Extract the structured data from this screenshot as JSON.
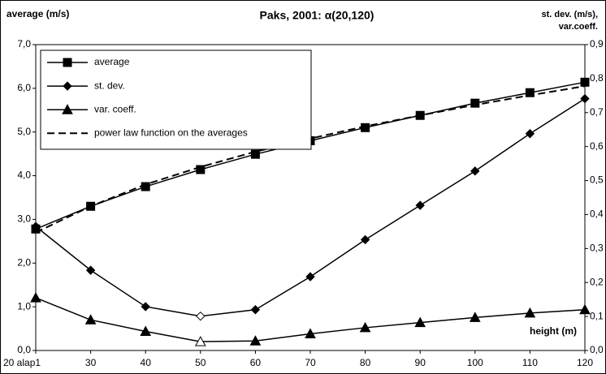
{
  "chart_data": {
    "type": "line",
    "title": "Paks, 2001: α(20,120)",
    "ylabel": "average (m/s)",
    "y2label": [
      "st. dev. (m/s),",
      "var.coeff."
    ],
    "annotation": "height (m)",
    "categories": [
      "20 alap1",
      "30",
      "40",
      "50",
      "60",
      "70",
      "80",
      "90",
      "100",
      "110",
      "120"
    ],
    "ylim": [
      0,
      7
    ],
    "yticks": [
      {
        "value": 0,
        "label": "0,0"
      },
      {
        "value": 1,
        "label": "1,0"
      },
      {
        "value": 2,
        "label": "2,0"
      },
      {
        "value": 3,
        "label": "3,0"
      },
      {
        "value": 4,
        "label": "4,0"
      },
      {
        "value": 5,
        "label": "5,0"
      },
      {
        "value": 6,
        "label": "6,0"
      },
      {
        "value": 7,
        "label": "7,0"
      }
    ],
    "y2lim": [
      0,
      0.9
    ],
    "y2ticks": [
      {
        "value": 0,
        "label": "0,0"
      },
      {
        "value": 0.1,
        "label": "0,1"
      },
      {
        "value": 0.2,
        "label": "0,2"
      },
      {
        "value": 0.3,
        "label": "0,3"
      },
      {
        "value": 0.4,
        "label": "0,4"
      },
      {
        "value": 0.5,
        "label": "0,5"
      },
      {
        "value": 0.6,
        "label": "0,6"
      },
      {
        "value": 0.7,
        "label": "0,7"
      },
      {
        "value": 0.8,
        "label": "0,8"
      },
      {
        "value": 0.9,
        "label": "0,9"
      }
    ],
    "legend": "upper left",
    "series": [
      {
        "name": "average",
        "color": "#000000",
        "marker": "square",
        "values": [
          2.78,
          3.3,
          3.75,
          4.14,
          4.49,
          4.8,
          5.1,
          5.38,
          5.66,
          5.9,
          6.14
        ]
      },
      {
        "name": "st. dev.",
        "color": "#000000",
        "marker": "diamond",
        "axis": "y2",
        "hollow_index": 3,
        "values": [
          0.365,
          0.236,
          0.129,
          0.101,
          0.12,
          0.217,
          0.326,
          0.427,
          0.528,
          0.638,
          0.741
        ]
      },
      {
        "name": "var. coeff.",
        "color": "#000000",
        "marker": "triangle",
        "axis": "y2",
        "hollow_index": 3,
        "values": [
          0.155,
          0.09,
          0.056,
          0.026,
          0.028,
          0.049,
          0.067,
          0.082,
          0.097,
          0.11,
          0.12
        ]
      },
      {
        "name": "power law function on the averages",
        "color": "#000000",
        "marker": "none",
        "dashed": true,
        "values": [
          2.7,
          3.3,
          3.8,
          4.2,
          4.55,
          4.85,
          5.13,
          5.38,
          5.62,
          5.84,
          6.05
        ]
      }
    ]
  }
}
